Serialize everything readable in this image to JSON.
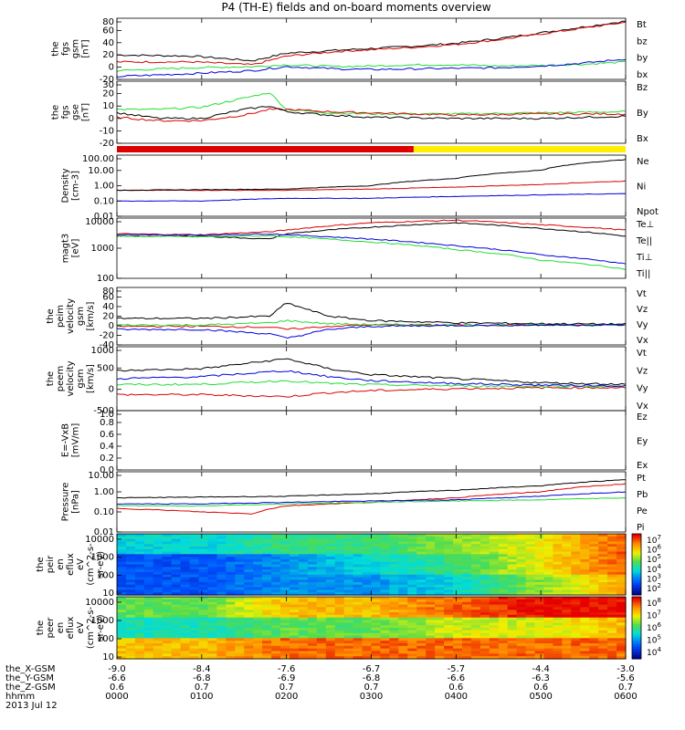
{
  "title": "P4 (TH-E) fields and on-board moments overview",
  "colors": {
    "black": "#000000",
    "red": "#dd0000",
    "green": "#22dd33",
    "blue": "#0000dd",
    "yellow": "#ffee00"
  },
  "chart_data": [
    {
      "type": "line",
      "panel": "fgs_gsm",
      "ylabel": [
        "the",
        "fgs",
        "gsm",
        "[nT]"
      ],
      "yticks": [
        "80",
        "60",
        "40",
        "20",
        "0",
        "-20"
      ],
      "ylim": [
        -20,
        85
      ],
      "series": [
        {
          "name": "Bt",
          "color": "#000000",
          "x": [
            0,
            0.9,
            1.6,
            2.0,
            2.6,
            3.0,
            3.5,
            4.0,
            4.5,
            5.0,
            5.5,
            6.0
          ],
          "y": [
            22,
            20,
            12,
            25,
            30,
            33,
            37,
            42,
            50,
            60,
            70,
            80
          ]
        },
        {
          "name": "bz",
          "color": "#dd0000",
          "x": [
            0,
            0.9,
            1.6,
            2.0,
            2.6,
            3.0,
            3.5,
            4.0,
            4.5,
            5.0,
            5.5,
            6.0
          ],
          "y": [
            10,
            10,
            5,
            20,
            28,
            31,
            35,
            40,
            48,
            58,
            68,
            78
          ]
        },
        {
          "name": "by",
          "color": "#22dd33",
          "x": [
            0,
            0.9,
            1.6,
            2.0,
            2.6,
            3.0,
            3.5,
            4.0,
            4.5,
            5.0,
            5.5,
            6.0
          ],
          "y": [
            -5,
            0,
            2,
            5,
            2,
            3,
            5,
            5,
            3,
            4,
            6,
            10
          ]
        },
        {
          "name": "bx",
          "color": "#0000dd",
          "x": [
            0,
            0.9,
            1.6,
            2.0,
            2.6,
            3.0,
            3.5,
            4.0,
            4.5,
            5.0,
            5.5,
            6.0
          ],
          "y": [
            -15,
            -10,
            -5,
            2,
            -2,
            -3,
            -2,
            -1,
            0,
            3,
            8,
            15
          ]
        }
      ]
    },
    {
      "type": "line",
      "panel": "fgs_gse",
      "ylabel": [
        "the",
        "fgs",
        "gse",
        "[nT]"
      ],
      "yticks": [
        "30",
        "20",
        "10",
        "0",
        "-10",
        "-20"
      ],
      "ylim": [
        -25,
        30
      ],
      "series": [
        {
          "name": "Bz",
          "color": "#22dd33",
          "x": [
            0,
            0.5,
            1.0,
            1.5,
            1.8,
            2.0,
            2.5,
            3.0,
            4.0,
            5.0,
            6.0
          ],
          "y": [
            5,
            5,
            7,
            15,
            20,
            5,
            2,
            1,
            1,
            2,
            3
          ]
        },
        {
          "name": "By",
          "color": "#dd0000",
          "x": [
            0,
            0.5,
            1.0,
            1.5,
            1.8,
            2.0,
            2.5,
            3.0,
            4.0,
            5.0,
            6.0
          ],
          "y": [
            -2,
            -5,
            -5,
            0,
            5,
            5,
            3,
            2,
            0,
            1,
            1
          ]
        },
        {
          "name": "Bx",
          "color": "#000000",
          "x": [
            0,
            0.5,
            1.0,
            1.5,
            1.8,
            2.0,
            2.5,
            3.0,
            4.0,
            5.0,
            6.0
          ],
          "y": [
            2,
            -3,
            -3,
            5,
            8,
            3,
            0,
            -2,
            -3,
            -3,
            -1
          ]
        }
      ]
    },
    {
      "type": "line",
      "panel": "density",
      "ylabel": [
        "Density",
        "[cm-3]"
      ],
      "yscale": "log",
      "yticks": [
        "100.00",
        "10.00",
        "1.00",
        "0.10",
        "0.01"
      ],
      "ylim": [
        0.01,
        100
      ],
      "series": [
        {
          "name": "Ne",
          "color": "#dd0000",
          "x": [
            0,
            1,
            2,
            3,
            4,
            5,
            6
          ],
          "y": [
            0.5,
            0.5,
            0.5,
            0.6,
            0.8,
            1.2,
            2.0
          ]
        },
        {
          "name": "Ni",
          "color": "#000000",
          "x": [
            0,
            1,
            2,
            3,
            4,
            5,
            6
          ],
          "y": [
            0.5,
            0.55,
            0.6,
            1.0,
            3.0,
            10,
            50
          ]
        },
        {
          "name": "Npot",
          "color": "#0000dd",
          "x": [
            0,
            1,
            2,
            3,
            4,
            5,
            6
          ],
          "y": [
            0.1,
            0.1,
            0.15,
            0.15,
            0.2,
            0.25,
            0.3
          ]
        }
      ]
    },
    {
      "type": "line",
      "panel": "temperature",
      "ylabel": [
        "magt3",
        "[eV]"
      ],
      "yscale": "log",
      "yticks": [
        "10000",
        "1000",
        "100"
      ],
      "ylim": [
        100,
        10000
      ],
      "series": [
        {
          "name": "Te⊥",
          "color": "#dd0000",
          "x": [
            0,
            1,
            1.8,
            2,
            3,
            4,
            5,
            6
          ],
          "y": [
            3000,
            2800,
            3500,
            4000,
            7000,
            8500,
            6000,
            4000
          ]
        },
        {
          "name": "Te||",
          "color": "#000000",
          "x": [
            0,
            1,
            1.8,
            2,
            3,
            4,
            5,
            6
          ],
          "y": [
            2500,
            2500,
            2000,
            3000,
            5000,
            7000,
            4500,
            2500
          ]
        },
        {
          "name": "Ti⊥",
          "color": "#0000dd",
          "x": [
            0,
            1,
            1.8,
            2,
            3,
            4,
            5,
            6
          ],
          "y": [
            2800,
            2700,
            3000,
            2800,
            2000,
            1200,
            600,
            300
          ]
        },
        {
          "name": "Ti||",
          "color": "#22dd33",
          "x": [
            0,
            1,
            1.8,
            2,
            3,
            4,
            5,
            6
          ],
          "y": [
            2500,
            2400,
            2600,
            2400,
            1600,
            900,
            400,
            200
          ]
        }
      ]
    },
    {
      "type": "line",
      "panel": "peim_velocity",
      "ylabel": [
        "the",
        "peim",
        "velocity",
        "gsm",
        "[km/s]"
      ],
      "yticks": [
        "80",
        "60",
        "40",
        "20",
        "0",
        "-20",
        "-40"
      ],
      "ylim": [
        -45,
        85
      ],
      "series": [
        {
          "name": "Vt",
          "color": "#000000",
          "x": [
            0,
            1,
            1.8,
            2,
            2.5,
            3,
            4,
            5,
            6
          ],
          "y": [
            15,
            15,
            20,
            50,
            20,
            10,
            5,
            3,
            2
          ]
        },
        {
          "name": "Vz",
          "color": "#dd0000",
          "x": [
            0,
            1,
            1.8,
            2,
            2.5,
            3,
            4,
            5,
            6
          ],
          "y": [
            -3,
            -3,
            -5,
            -10,
            -3,
            0,
            0,
            0,
            0
          ]
        },
        {
          "name": "Vy",
          "color": "#22dd33",
          "x": [
            0,
            1,
            1.8,
            2,
            2.5,
            3,
            4,
            5,
            6
          ],
          "y": [
            0,
            0,
            5,
            10,
            3,
            1,
            0,
            0,
            0
          ]
        },
        {
          "name": "Vx",
          "color": "#0000dd",
          "x": [
            0,
            1,
            1.8,
            2,
            2.5,
            3,
            4,
            5,
            6
          ],
          "y": [
            -10,
            -10,
            -20,
            -30,
            -10,
            -3,
            -1,
            0,
            0
          ]
        }
      ]
    },
    {
      "type": "line",
      "panel": "peem_velocity",
      "ylabel": [
        "the",
        "peem",
        "velocity",
        "gsm",
        "[km/s]"
      ],
      "yticks": [
        "1000",
        "500",
        "0",
        "-500"
      ],
      "ylim": [
        -600,
        1000
      ],
      "series": [
        {
          "name": "Vt",
          "color": "#000000",
          "x": [
            0,
            1,
            2,
            2.5,
            3,
            4,
            5,
            6
          ],
          "y": [
            400,
            450,
            700,
            450,
            300,
            200,
            100,
            60
          ]
        },
        {
          "name": "Vz",
          "color": "#dd0000",
          "x": [
            0,
            1,
            2,
            2.5,
            3,
            4,
            5,
            6
          ],
          "y": [
            -200,
            -200,
            -250,
            -150,
            -100,
            -50,
            -30,
            -20
          ]
        },
        {
          "name": "Vy",
          "color": "#22dd33",
          "x": [
            0,
            1,
            2,
            2.5,
            3,
            4,
            5,
            6
          ],
          "y": [
            50,
            60,
            150,
            80,
            50,
            20,
            10,
            5
          ]
        },
        {
          "name": "Vx",
          "color": "#0000dd",
          "x": [
            0,
            1,
            2,
            2.5,
            3,
            4,
            5,
            6
          ],
          "y": [
            200,
            250,
            400,
            250,
            150,
            80,
            40,
            20
          ]
        }
      ]
    },
    {
      "type": "line",
      "panel": "efield",
      "ylabel": [
        "E=-VxB",
        "[mV/m]"
      ],
      "yticks": [
        "1.0",
        "0.8",
        "0.6",
        "0.4",
        "0.2",
        "0.0"
      ],
      "ylim": [
        0,
        1
      ],
      "series": [
        {
          "name": "Ez",
          "color": "#dd0000",
          "x": [],
          "y": []
        },
        {
          "name": "Ey",
          "color": "#22dd33",
          "x": [],
          "y": []
        },
        {
          "name": "Ex",
          "color": "#0000dd",
          "x": [],
          "y": []
        }
      ]
    },
    {
      "type": "line",
      "panel": "pressure",
      "ylabel": [
        "Pressure",
        "[nPa]"
      ],
      "yscale": "log",
      "yticks": [
        "10.00",
        "1.00",
        "0.10",
        "0.01"
      ],
      "ylim": [
        0.01,
        10
      ],
      "series": [
        {
          "name": "Pt",
          "color": "#000000",
          "x": [
            0,
            1,
            2,
            3,
            4,
            5,
            6
          ],
          "y": [
            0.5,
            0.55,
            0.6,
            0.8,
            1.2,
            2.0,
            4.0
          ]
        },
        {
          "name": "Pb",
          "color": "#dd0000",
          "x": [
            0,
            1,
            1.6,
            2,
            3,
            4,
            5,
            6
          ],
          "y": [
            0.15,
            0.1,
            0.08,
            0.2,
            0.3,
            0.5,
            1.0,
            2.5
          ]
        },
        {
          "name": "Pe",
          "color": "#22dd33",
          "x": [
            0,
            1,
            2,
            3,
            4,
            5,
            6
          ],
          "y": [
            0.2,
            0.2,
            0.25,
            0.3,
            0.35,
            0.4,
            0.5
          ]
        },
        {
          "name": "Pi",
          "color": "#0000dd",
          "x": [
            0,
            1,
            2,
            3,
            4,
            5,
            6
          ],
          "y": [
            0.25,
            0.25,
            0.3,
            0.35,
            0.4,
            0.6,
            1.0
          ]
        }
      ]
    },
    {
      "type": "heatmap",
      "panel": "peir_spectrogram",
      "ylabel": [
        "the",
        "peir",
        "en",
        "eflux",
        "eV",
        "(cm^2-s-",
        "sr-eV)"
      ],
      "yscale": "log",
      "yticks": [
        "10000",
        "1000",
        "100",
        "10"
      ],
      "ylim": [
        8,
        20000
      ],
      "colorbar": {
        "ticks": [
          "10^7",
          "10^6",
          "10^5",
          "10^4",
          "10^3",
          "10^2"
        ],
        "range": [
          100,
          10000000
        ]
      },
      "x": [
        0,
        1,
        2,
        3,
        4,
        5,
        6
      ],
      "description_levels": [
        [
          4,
          4,
          4.5,
          4.5,
          5,
          5.5,
          6.5
        ],
        [
          3,
          3,
          3.5,
          4,
          4.5,
          5.5,
          6.5
        ],
        [
          3,
          3,
          3.5,
          3.5,
          4,
          5,
          6
        ]
      ]
    },
    {
      "type": "heatmap",
      "panel": "peer_spectrogram",
      "ylabel": [
        "the",
        "peer",
        "en",
        "eflux",
        "eV",
        "(cm^2-s-",
        "sr-eV)"
      ],
      "yscale": "log",
      "yticks": [
        "10000",
        "1000",
        "100",
        "10"
      ],
      "ylim": [
        8,
        20000
      ],
      "colorbar": {
        "ticks": [
          "10^8",
          "10^7",
          "10^6",
          "10^5",
          "10^4"
        ],
        "range": [
          3000,
          100000000
        ]
      },
      "x": [
        0,
        1,
        2,
        3,
        4,
        5,
        6
      ],
      "description_levels": [
        [
          6,
          6,
          7,
          7,
          7.5,
          8,
          8
        ],
        [
          5.5,
          5.5,
          6,
          6,
          6.5,
          6.5,
          7
        ],
        [
          7,
          7,
          7.5,
          7.5,
          7.5,
          7.5,
          7.5
        ]
      ]
    }
  ],
  "x_axis": {
    "row_labels": [
      "the_X-GSM",
      "the_Y-GSM",
      "the_Z-GSM",
      "hhmm",
      "2013 Jul 12"
    ],
    "columns": [
      {
        "x": 0,
        "values": [
          "-9.0",
          "-6.6",
          "0.6",
          "0000"
        ]
      },
      {
        "x": 1,
        "values": [
          "-8.4",
          "-6.8",
          "0.7",
          "0100"
        ]
      },
      {
        "x": 2,
        "values": [
          "-7.6",
          "-6.9",
          "0.7",
          "0200"
        ]
      },
      {
        "x": 3,
        "values": [
          "-6.7",
          "-6.8",
          "0.7",
          "0300"
        ]
      },
      {
        "x": 4,
        "values": [
          "-5.7",
          "-6.6",
          "0.6",
          "0400"
        ]
      },
      {
        "x": 5,
        "values": [
          "-4.4",
          "-6.3",
          "0.6",
          "0500"
        ]
      },
      {
        "x": 6,
        "values": [
          "-3.0",
          "-5.6",
          "0.7",
          "0600"
        ]
      }
    ]
  },
  "mode_bar": {
    "segments": [
      {
        "from": 0,
        "to": 3.5,
        "color": "#dd0000"
      },
      {
        "from": 3.5,
        "to": 6,
        "color": "#ffee00"
      }
    ]
  }
}
